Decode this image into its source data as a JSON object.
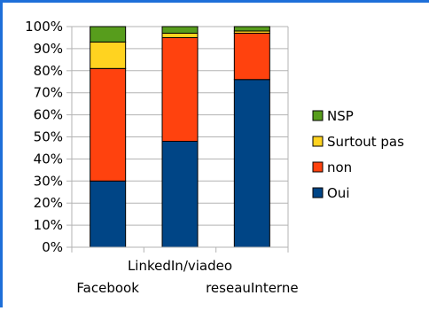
{
  "chart_data": {
    "type": "bar",
    "stacked": true,
    "categories": [
      "Facebook",
      "LinkedIn/viadeo",
      "reseauInterne"
    ],
    "y_ticks": [
      "0%",
      "10%",
      "20%",
      "30%",
      "40%",
      "50%",
      "60%",
      "70%",
      "80%",
      "90%",
      "100%"
    ],
    "ylim": [
      0,
      100
    ],
    "grid": true,
    "legend_position": "right",
    "series": [
      {
        "name": "Oui",
        "color": "#004586",
        "values": [
          30,
          48,
          76
        ]
      },
      {
        "name": "non",
        "color": "#ff420e",
        "values": [
          51,
          47,
          21
        ]
      },
      {
        "name": "Surtout pas",
        "color": "#ffd320",
        "values": [
          12,
          2,
          1
        ]
      },
      {
        "name": "NSP",
        "color": "#579d1c",
        "values": [
          7,
          3,
          2
        ]
      }
    ]
  }
}
